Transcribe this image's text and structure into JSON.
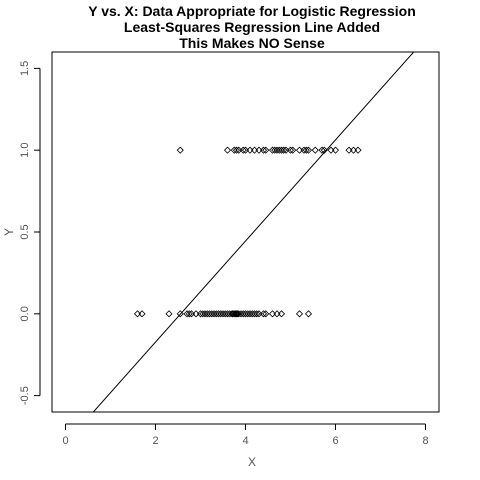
{
  "chart_data": {
    "type": "scatter",
    "title_lines": [
      "Y vs. X: Data Appropriate for Logistic Regression",
      "Least-Squares Regression Line Added",
      "This Makes NO Sense"
    ],
    "xlabel": "X",
    "ylabel": "Y",
    "xlim": [
      -0.3,
      8.3
    ],
    "ylim": [
      -0.6,
      1.6
    ],
    "x_ticks": [
      0,
      2,
      4,
      6,
      8
    ],
    "y_ticks": [
      -0.5,
      0.0,
      0.5,
      1.0,
      1.5
    ],
    "x_tick_labels": [
      "0",
      "2",
      "4",
      "6",
      "8"
    ],
    "y_tick_labels": [
      "-0.5",
      "0.0",
      "0.5",
      "1.0",
      "1.5"
    ],
    "grid": false,
    "point_marker": "open-diamond",
    "series": [
      {
        "y": 0,
        "x": [
          1.6,
          1.7,
          2.3,
          2.55,
          2.7,
          2.75,
          2.8,
          2.9,
          3.0,
          3.05,
          3.1,
          3.15,
          3.2,
          3.25,
          3.3,
          3.35,
          3.4,
          3.45,
          3.5,
          3.55,
          3.6,
          3.65,
          3.7,
          3.72,
          3.75,
          3.78,
          3.8,
          3.82,
          3.85,
          3.9,
          3.95,
          4.0,
          4.05,
          4.1,
          4.15,
          4.2,
          4.25,
          4.3,
          4.4,
          4.45,
          4.6,
          4.7,
          4.8,
          5.2,
          5.4
        ]
      },
      {
        "y": 1,
        "x": [
          2.55,
          3.6,
          3.75,
          3.8,
          3.85,
          3.95,
          4.0,
          4.1,
          4.2,
          4.3,
          4.4,
          4.45,
          4.6,
          4.65,
          4.7,
          4.75,
          4.8,
          4.85,
          4.9,
          5.0,
          5.05,
          5.2,
          5.3,
          5.35,
          5.4,
          5.55,
          5.7,
          5.75,
          5.9,
          6.0,
          6.3,
          6.4,
          6.5
        ]
      }
    ],
    "regression_line": {
      "intercept": -0.791,
      "slope": 0.309
    },
    "colors": {
      "points": "#000000",
      "line": "#000000",
      "axes": "#000000",
      "tick_text": "#555555"
    }
  }
}
